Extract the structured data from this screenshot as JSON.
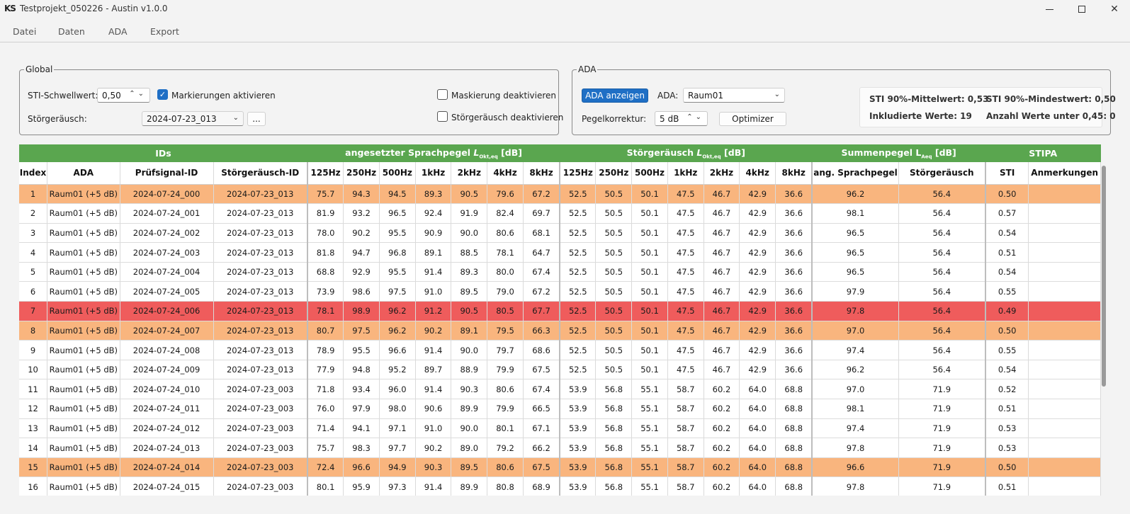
{
  "window": {
    "logo": "KS",
    "title": "Testprojekt_050226 - Austin v1.0.0",
    "minimize_label": "",
    "maximize_label": "",
    "close_label": "✕"
  },
  "menu": [
    "Datei",
    "Daten",
    "ADA",
    "Export"
  ],
  "global": {
    "title": "Global",
    "sti_threshold_label": "STI-Schwellwert:",
    "sti_threshold_value": "0,50",
    "mark_label": "Markierungen aktivieren",
    "mark_checked": true,
    "noise_label": "Störgeräusch:",
    "noise_value": "2024-07-23_013",
    "browse_label": "...",
    "mask_off_label": "Maskierung deaktivieren",
    "noise_off_label": "Störgeräusch deaktivieren"
  },
  "ada": {
    "title": "ADA",
    "show_button": "ADA anzeigen",
    "ada_label": "ADA:",
    "ada_value": "Raum01",
    "level_label": "Pegelkorrektur:",
    "level_value": "5 dB",
    "optimizer_button": "Optimizer"
  },
  "stats": {
    "mean": "STI 90%-Mittelwert: 0,53",
    "min": "STI 90%-Mindestwert: 0,50",
    "included": "Inkludierte Werte: 19",
    "below": "Anzahl Werte unter 0,45: 0"
  },
  "colors": {
    "group_header": "#5aa64f",
    "warn_row": "#f9b57e",
    "bad_row": "#ef5c5c",
    "accent_button": "#1f6fc5"
  },
  "table": {
    "groups": {
      "ids": "IDs",
      "speech_prefix": "angesetzter Sprachpegel ",
      "speech_L": "L",
      "speech_sub": "Okt,eq",
      "speech_unit": " [dB]",
      "noise_prefix": "Störgeräusch ",
      "noise_L": "L",
      "noise_sub": "Okt,eq",
      "noise_unit": " [dB]",
      "sum_prefix": "Summenpegel L",
      "sum_sub": "Aeq",
      "sum_unit": " [dB]",
      "stipa": "STIPA"
    },
    "columns": [
      "Index",
      "ADA",
      "Prüfsignal-ID",
      "Störgeräusch-ID",
      "125Hz",
      "250Hz",
      "500Hz",
      "1kHz",
      "2kHz",
      "4kHz",
      "8kHz",
      "125Hz",
      "250Hz",
      "500Hz",
      "1kHz",
      "2kHz",
      "4kHz",
      "8kHz",
      "ang. Sprachpegel",
      "Störgeräusch",
      "STI",
      "Anmerkungen"
    ],
    "rows": [
      {
        "status": "warn",
        "cells": [
          "1",
          "Raum01 (+5 dB)",
          "2024-07-24_000",
          "2024-07-23_013",
          "75.7",
          "94.3",
          "94.5",
          "89.3",
          "90.5",
          "79.6",
          "67.2",
          "52.5",
          "50.5",
          "50.1",
          "47.5",
          "46.7",
          "42.9",
          "36.6",
          "96.2",
          "56.4",
          "0.50",
          ""
        ]
      },
      {
        "status": "",
        "cells": [
          "2",
          "Raum01 (+5 dB)",
          "2024-07-24_001",
          "2024-07-23_013",
          "81.9",
          "93.2",
          "96.5",
          "92.4",
          "91.9",
          "82.4",
          "69.7",
          "52.5",
          "50.5",
          "50.1",
          "47.5",
          "46.7",
          "42.9",
          "36.6",
          "98.1",
          "56.4",
          "0.57",
          ""
        ]
      },
      {
        "status": "",
        "cells": [
          "3",
          "Raum01 (+5 dB)",
          "2024-07-24_002",
          "2024-07-23_013",
          "78.0",
          "90.2",
          "95.5",
          "90.9",
          "90.0",
          "80.6",
          "68.1",
          "52.5",
          "50.5",
          "50.1",
          "47.5",
          "46.7",
          "42.9",
          "36.6",
          "96.5",
          "56.4",
          "0.54",
          ""
        ]
      },
      {
        "status": "",
        "cells": [
          "4",
          "Raum01 (+5 dB)",
          "2024-07-24_003",
          "2024-07-23_013",
          "81.8",
          "94.7",
          "96.8",
          "89.1",
          "88.5",
          "78.1",
          "64.7",
          "52.5",
          "50.5",
          "50.1",
          "47.5",
          "46.7",
          "42.9",
          "36.6",
          "96.5",
          "56.4",
          "0.51",
          ""
        ]
      },
      {
        "status": "",
        "cells": [
          "5",
          "Raum01 (+5 dB)",
          "2024-07-24_004",
          "2024-07-23_013",
          "68.8",
          "92.9",
          "95.5",
          "91.4",
          "89.3",
          "80.0",
          "67.4",
          "52.5",
          "50.5",
          "50.1",
          "47.5",
          "46.7",
          "42.9",
          "36.6",
          "96.5",
          "56.4",
          "0.54",
          ""
        ]
      },
      {
        "status": "",
        "cells": [
          "6",
          "Raum01 (+5 dB)",
          "2024-07-24_005",
          "2024-07-23_013",
          "73.9",
          "98.6",
          "97.5",
          "91.0",
          "89.5",
          "79.0",
          "67.2",
          "52.5",
          "50.5",
          "50.1",
          "47.5",
          "46.7",
          "42.9",
          "36.6",
          "97.9",
          "56.4",
          "0.55",
          ""
        ]
      },
      {
        "status": "bad",
        "cells": [
          "7",
          "Raum01 (+5 dB)",
          "2024-07-24_006",
          "2024-07-23_013",
          "78.1",
          "98.9",
          "96.2",
          "91.2",
          "90.5",
          "80.5",
          "67.7",
          "52.5",
          "50.5",
          "50.1",
          "47.5",
          "46.7",
          "42.9",
          "36.6",
          "97.8",
          "56.4",
          "0.49",
          ""
        ]
      },
      {
        "status": "warn",
        "cells": [
          "8",
          "Raum01 (+5 dB)",
          "2024-07-24_007",
          "2024-07-23_013",
          "80.7",
          "97.5",
          "96.2",
          "90.2",
          "89.1",
          "79.5",
          "66.3",
          "52.5",
          "50.5",
          "50.1",
          "47.5",
          "46.7",
          "42.9",
          "36.6",
          "97.0",
          "56.4",
          "0.50",
          ""
        ]
      },
      {
        "status": "",
        "cells": [
          "9",
          "Raum01 (+5 dB)",
          "2024-07-24_008",
          "2024-07-23_013",
          "78.9",
          "95.5",
          "96.6",
          "91.4",
          "90.0",
          "79.7",
          "68.6",
          "52.5",
          "50.5",
          "50.1",
          "47.5",
          "46.7",
          "42.9",
          "36.6",
          "97.4",
          "56.4",
          "0.55",
          ""
        ]
      },
      {
        "status": "",
        "cells": [
          "10",
          "Raum01 (+5 dB)",
          "2024-07-24_009",
          "2024-07-23_013",
          "77.9",
          "94.8",
          "95.2",
          "89.7",
          "88.9",
          "79.9",
          "67.5",
          "52.5",
          "50.5",
          "50.1",
          "47.5",
          "46.7",
          "42.9",
          "36.6",
          "96.2",
          "56.4",
          "0.54",
          ""
        ]
      },
      {
        "status": "",
        "cells": [
          "11",
          "Raum01 (+5 dB)",
          "2024-07-24_010",
          "2024-07-23_003",
          "71.8",
          "93.4",
          "96.0",
          "91.4",
          "90.3",
          "80.6",
          "67.4",
          "53.9",
          "56.8",
          "55.1",
          "58.7",
          "60.2",
          "64.0",
          "68.8",
          "97.0",
          "71.9",
          "0.52",
          ""
        ]
      },
      {
        "status": "",
        "cells": [
          "12",
          "Raum01 (+5 dB)",
          "2024-07-24_011",
          "2024-07-23_003",
          "76.0",
          "97.9",
          "98.0",
          "90.6",
          "89.9",
          "79.9",
          "66.5",
          "53.9",
          "56.8",
          "55.1",
          "58.7",
          "60.2",
          "64.0",
          "68.8",
          "98.1",
          "71.9",
          "0.51",
          ""
        ]
      },
      {
        "status": "",
        "cells": [
          "13",
          "Raum01 (+5 dB)",
          "2024-07-24_012",
          "2024-07-23_003",
          "71.4",
          "94.1",
          "97.1",
          "91.0",
          "90.0",
          "80.1",
          "67.1",
          "53.9",
          "56.8",
          "55.1",
          "58.7",
          "60.2",
          "64.0",
          "68.8",
          "97.4",
          "71.9",
          "0.53",
          ""
        ]
      },
      {
        "status": "",
        "cells": [
          "14",
          "Raum01 (+5 dB)",
          "2024-07-24_013",
          "2024-07-23_003",
          "75.7",
          "98.3",
          "97.7",
          "90.2",
          "89.0",
          "79.2",
          "66.2",
          "53.9",
          "56.8",
          "55.1",
          "58.7",
          "60.2",
          "64.0",
          "68.8",
          "97.8",
          "71.9",
          "0.53",
          ""
        ]
      },
      {
        "status": "warn",
        "cells": [
          "15",
          "Raum01 (+5 dB)",
          "2024-07-24_014",
          "2024-07-23_003",
          "72.4",
          "96.6",
          "94.9",
          "90.3",
          "89.5",
          "80.6",
          "67.5",
          "53.9",
          "56.8",
          "55.1",
          "58.7",
          "60.2",
          "64.0",
          "68.8",
          "96.6",
          "71.9",
          "0.50",
          ""
        ]
      },
      {
        "status": "",
        "cells": [
          "16",
          "Raum01 (+5 dB)",
          "2024-07-24_015",
          "2024-07-23_003",
          "80.1",
          "95.9",
          "97.3",
          "91.4",
          "89.9",
          "80.8",
          "68.9",
          "53.9",
          "56.8",
          "55.1",
          "58.7",
          "60.2",
          "64.0",
          "68.8",
          "97.8",
          "71.9",
          "0.51",
          ""
        ]
      }
    ]
  }
}
